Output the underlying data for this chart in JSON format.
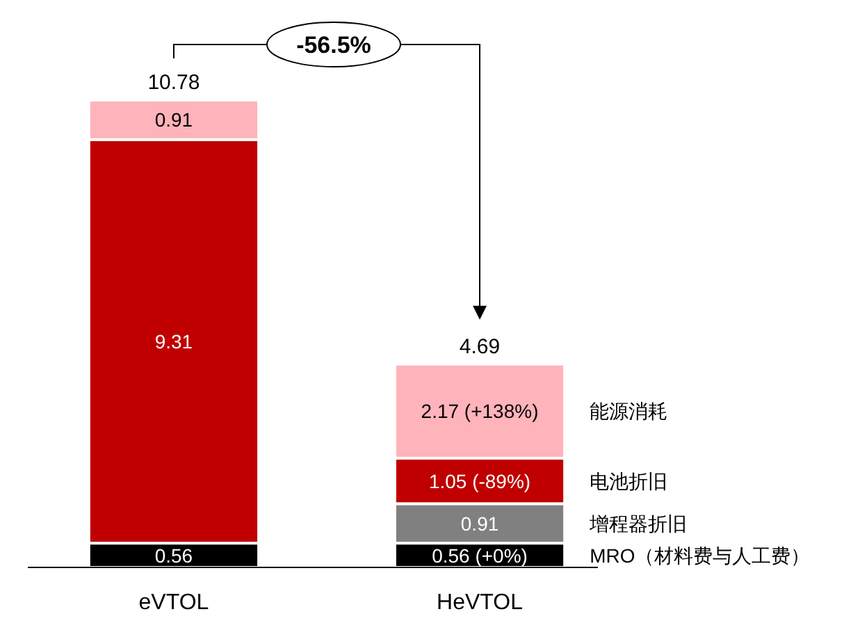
{
  "chart_data": {
    "type": "bar",
    "stacked": true,
    "categories": [
      "eVTOL",
      "HeVTOL"
    ],
    "series": [
      {
        "name": "MRO（材料费与人工费）",
        "color": "#000000",
        "values": [
          0.56,
          0.56
        ],
        "value_labels": [
          "0.56",
          "0.56 (+0%)"
        ]
      },
      {
        "name": "增程器折旧",
        "color": "#808080",
        "values": [
          null,
          0.91
        ],
        "value_labels": [
          null,
          "0.91"
        ]
      },
      {
        "name": "电池折旧",
        "color": "#c00000",
        "values": [
          9.31,
          1.05
        ],
        "value_labels": [
          "9.31",
          "1.05 (-89%)"
        ]
      },
      {
        "name": "能源消耗",
        "color": "#ffb3ba",
        "values": [
          0.91,
          2.17
        ],
        "value_labels": [
          "0.91",
          "2.17 (+138%)"
        ]
      }
    ],
    "totals": [
      "10.78",
      "4.69"
    ],
    "annotations": [
      "-56.5%"
    ],
    "legend": "right"
  }
}
